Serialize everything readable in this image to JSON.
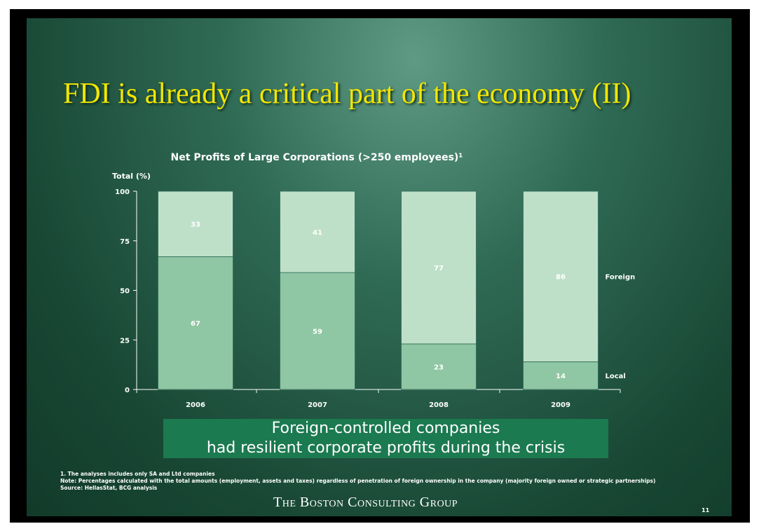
{
  "slide": {
    "title": "FDI is already a critical part of the economy (II)",
    "callout_line1": "Foreign-controlled companies",
    "callout_line2": "had resilient corporate profits during the crisis",
    "notes": [
      "1. The analyses includes only SA and Ltd companies",
      "Note: Percentages calculated with the total amounts (employment, assets and taxes)  regardless of penetration of foreign ownership in the company (majority foreign owned or strategic partnerships)",
      "Source: HellasStat, BCG analysis"
    ],
    "logo": "The Boston Consulting Group",
    "page_number": "11"
  },
  "colors": {
    "slide_dark": "#184734",
    "slide_light": "#5f9a85",
    "title": "#f2e600",
    "bar_local": "#8fc6a3",
    "bar_foreign": "#bfe0c8",
    "callout_bg": "#1c7a50",
    "text": "#ffffff"
  },
  "chart_data": {
    "type": "bar",
    "stacked": true,
    "title": "Net Profits of Large Corporations (>250 employees)¹",
    "ylabel": "Total (%)",
    "xlabel": "",
    "ylim": [
      0,
      100
    ],
    "yticks": [
      0,
      25,
      50,
      75,
      100
    ],
    "categories": [
      "2006",
      "2007",
      "2008",
      "2009"
    ],
    "series": [
      {
        "name": "Local",
        "values": [
          67,
          59,
          23,
          14
        ]
      },
      {
        "name": "Foreign",
        "values": [
          33,
          41,
          77,
          86
        ]
      }
    ],
    "legend": "right"
  }
}
